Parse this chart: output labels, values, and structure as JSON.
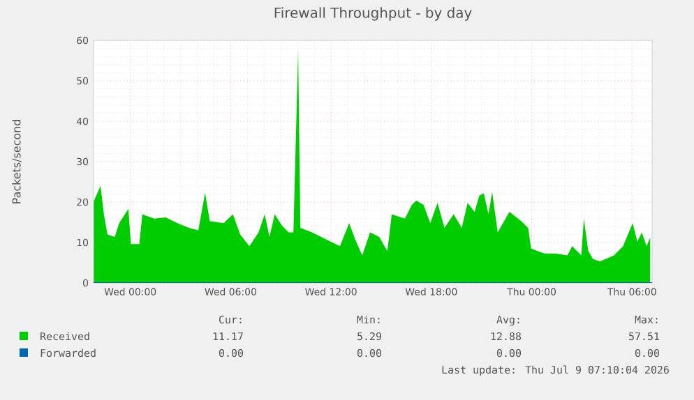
{
  "chart_data": {
    "type": "area",
    "title": "Firewall Throughput - by day",
    "ylabel": "Packets/second",
    "xlim": [
      "2026-07-07T21:48",
      "2026-07-09T07:12"
    ],
    "xticks": [
      {
        "value": "2026-07-08T00:00",
        "label": "Wed 00:00"
      },
      {
        "value": "2026-07-08T06:00",
        "label": "Wed 06:00"
      },
      {
        "value": "2026-07-08T12:00",
        "label": "Wed 12:00"
      },
      {
        "value": "2026-07-08T18:00",
        "label": "Wed 18:00"
      },
      {
        "value": "2026-07-09T00:00",
        "label": "Thu 00:00"
      },
      {
        "value": "2026-07-09T06:00",
        "label": "Thu 06:00"
      }
    ],
    "ylim": [
      0,
      60
    ],
    "yticks": [
      0,
      10,
      20,
      30,
      40,
      50,
      60
    ],
    "grid": true,
    "legend": "bottom",
    "series": [
      {
        "name": "Received",
        "color": "#00cc00",
        "x": [
          "2026-07-07T21:49",
          "2026-07-07T22:13",
          "2026-07-07T22:25",
          "2026-07-07T22:38",
          "2026-07-07T23:04",
          "2026-07-07T23:20",
          "2026-07-07T23:53",
          "2026-07-08T00:02",
          "2026-07-08T00:32",
          "2026-07-08T00:43",
          "2026-07-08T01:25",
          "2026-07-08T02:07",
          "2026-07-08T02:49",
          "2026-07-08T03:30",
          "2026-07-08T04:04",
          "2026-07-08T04:28",
          "2026-07-08T04:45",
          "2026-07-08T05:35",
          "2026-07-08T06:08",
          "2026-07-08T06:34",
          "2026-07-08T07:07",
          "2026-07-08T07:40",
          "2026-07-08T08:02",
          "2026-07-08T08:19",
          "2026-07-08T08:38",
          "2026-07-08T09:04",
          "2026-07-08T09:28",
          "2026-07-08T09:45",
          "2026-07-08T10:02",
          "2026-07-08T10:10",
          "2026-07-08T10:52",
          "2026-07-08T11:41",
          "2026-07-08T12:32",
          "2026-07-08T13:05",
          "2026-07-08T13:30",
          "2026-07-08T13:52",
          "2026-07-08T14:20",
          "2026-07-08T14:53",
          "2026-07-08T15:22",
          "2026-07-08T15:38",
          "2026-07-08T16:25",
          "2026-07-08T16:50",
          "2026-07-08T17:06",
          "2026-07-08T17:32",
          "2026-07-08T17:56",
          "2026-07-08T18:22",
          "2026-07-08T18:47",
          "2026-07-08T19:20",
          "2026-07-08T19:49",
          "2026-07-08T20:10",
          "2026-07-08T20:35",
          "2026-07-08T20:52",
          "2026-07-08T21:08",
          "2026-07-08T21:25",
          "2026-07-08T21:38",
          "2026-07-08T21:58",
          "2026-07-08T22:40",
          "2026-07-08T23:22",
          "2026-07-08T23:47",
          "2026-07-08T23:58",
          "2026-07-09T00:45",
          "2026-07-09T01:26",
          "2026-07-09T02:08",
          "2026-07-09T02:25",
          "2026-07-09T02:58",
          "2026-07-09T03:07",
          "2026-07-09T03:23",
          "2026-07-09T03:40",
          "2026-07-09T04:05",
          "2026-07-09T04:55",
          "2026-07-09T05:28",
          "2026-07-09T06:02",
          "2026-07-09T06:19",
          "2026-07-09T06:35",
          "2026-07-09T06:52",
          "2026-07-09T07:05"
        ],
        "values": [
          20.2,
          24,
          17,
          12,
          11.4,
          14.8,
          18.3,
          9.6,
          9.6,
          17,
          15.9,
          16.2,
          14.8,
          13.6,
          13,
          22.3,
          15.3,
          14.8,
          17,
          12,
          9.1,
          12.5,
          17,
          11.4,
          17,
          14.2,
          12.5,
          12.5,
          57.5,
          13.6,
          12.5,
          10.8,
          9.1,
          14.8,
          10.2,
          6.8,
          12.5,
          11.4,
          7.9,
          17,
          15.9,
          19.3,
          20.4,
          19.3,
          14.8,
          19.8,
          13.6,
          17,
          13.6,
          19.8,
          17.6,
          21.6,
          22.2,
          17,
          22.6,
          12.5,
          17.6,
          15.3,
          13.6,
          8.5,
          7.3,
          7.3,
          6.8,
          9.1,
          6.8,
          15.9,
          7.9,
          5.9,
          5.3,
          6.8,
          9.1,
          14.8,
          10.2,
          12.5,
          9.1,
          11.2
        ]
      },
      {
        "name": "Forwarded",
        "color": "#0066b3",
        "type": "line",
        "x": [
          "2026-07-07T21:48",
          "2026-07-09T07:12"
        ],
        "values": [
          0,
          0
        ]
      }
    ],
    "annotations": [
      "Cur:",
      "Min:",
      "Avg:",
      "Max:",
      "11.17",
      "5.29",
      "12.88",
      "57.51",
      "0.00",
      "0.00",
      "0.00",
      "0.00",
      "Last update: Thu Jul  9 07:10:04 2026"
    ]
  }
}
